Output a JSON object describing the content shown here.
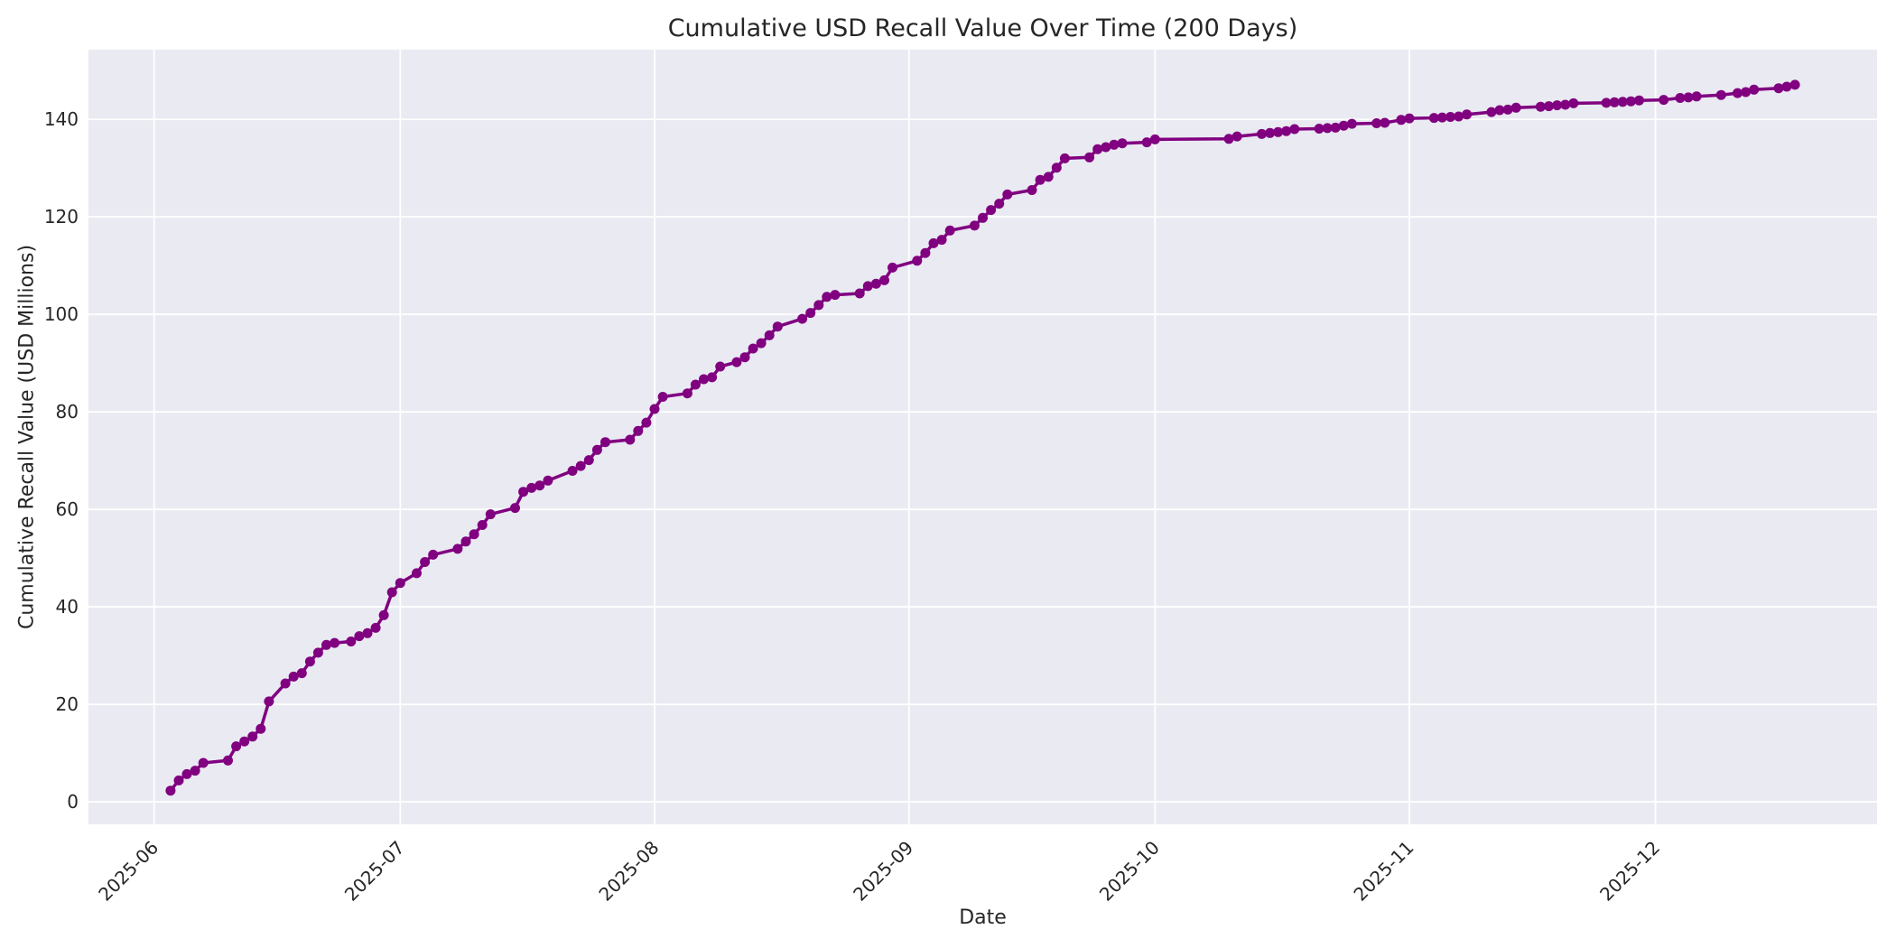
{
  "chart_data": {
    "type": "line",
    "title": "Cumulative USD Recall Value Over Time (200 Days)",
    "xlabel": "Date",
    "ylabel": "Cumulative Recall Value (USD Millions)",
    "legend": null,
    "grid": true,
    "style": {
      "plot_background": "#eaeaf2",
      "grid_color": "#ffffff",
      "line_color": "#800080",
      "marker": "circle",
      "text_color": "#262626"
    },
    "axes": {
      "xlim": [
        "2025-05-24",
        "2025-12-28"
      ],
      "ylim": [
        -4.6,
        154.3
      ],
      "x_tick_rotation_deg": 45
    },
    "x_ticks": [
      {
        "label": "2025-06",
        "date": "2025-06-01"
      },
      {
        "label": "2025-07",
        "date": "2025-07-01"
      },
      {
        "label": "2025-08",
        "date": "2025-08-01"
      },
      {
        "label": "2025-09",
        "date": "2025-09-01"
      },
      {
        "label": "2025-10",
        "date": "2025-10-01"
      },
      {
        "label": "2025-11",
        "date": "2025-11-01"
      },
      {
        "label": "2025-12",
        "date": "2025-12-01"
      }
    ],
    "y_ticks": [
      0,
      20,
      40,
      60,
      80,
      100,
      120,
      140
    ],
    "series": [
      {
        "name": "Cumulative USD Recall Value",
        "points": [
          [
            "2025-06-03",
            2.3
          ],
          [
            "2025-06-04",
            4.4
          ],
          [
            "2025-06-05",
            5.7
          ],
          [
            "2025-06-06",
            6.4
          ],
          [
            "2025-06-07",
            8.0
          ],
          [
            "2025-06-10",
            8.5
          ],
          [
            "2025-06-11",
            11.4
          ],
          [
            "2025-06-12",
            12.4
          ],
          [
            "2025-06-13",
            13.4
          ],
          [
            "2025-06-14",
            15.0
          ],
          [
            "2025-06-15",
            20.6
          ],
          [
            "2025-06-17",
            24.3
          ],
          [
            "2025-06-18",
            25.7
          ],
          [
            "2025-06-19",
            26.4
          ],
          [
            "2025-06-20",
            28.8
          ],
          [
            "2025-06-21",
            30.6
          ],
          [
            "2025-06-22",
            32.2
          ],
          [
            "2025-06-23",
            32.6
          ],
          [
            "2025-06-25",
            32.9
          ],
          [
            "2025-06-26",
            34.0
          ],
          [
            "2025-06-27",
            34.6
          ],
          [
            "2025-06-28",
            35.7
          ],
          [
            "2025-06-29",
            38.3
          ],
          [
            "2025-06-30",
            43.0
          ],
          [
            "2025-07-01",
            44.9
          ],
          [
            "2025-07-03",
            46.9
          ],
          [
            "2025-07-04",
            49.2
          ],
          [
            "2025-07-05",
            50.7
          ],
          [
            "2025-07-08",
            51.9
          ],
          [
            "2025-07-09",
            53.4
          ],
          [
            "2025-07-10",
            54.9
          ],
          [
            "2025-07-11",
            56.8
          ],
          [
            "2025-07-12",
            59.0
          ],
          [
            "2025-07-15",
            60.3
          ],
          [
            "2025-07-16",
            63.6
          ],
          [
            "2025-07-17",
            64.4
          ],
          [
            "2025-07-18",
            64.9
          ],
          [
            "2025-07-19",
            65.9
          ],
          [
            "2025-07-22",
            67.9
          ],
          [
            "2025-07-23",
            68.9
          ],
          [
            "2025-07-24",
            70.1
          ],
          [
            "2025-07-25",
            72.2
          ],
          [
            "2025-07-26",
            73.8
          ],
          [
            "2025-07-29",
            74.3
          ],
          [
            "2025-07-30",
            76.1
          ],
          [
            "2025-07-31",
            77.8
          ],
          [
            "2025-08-01",
            80.6
          ],
          [
            "2025-08-02",
            83.1
          ],
          [
            "2025-08-05",
            83.8
          ],
          [
            "2025-08-06",
            85.6
          ],
          [
            "2025-08-07",
            86.7
          ],
          [
            "2025-08-08",
            87.1
          ],
          [
            "2025-08-09",
            89.3
          ],
          [
            "2025-08-11",
            90.2
          ],
          [
            "2025-08-12",
            91.2
          ],
          [
            "2025-08-13",
            93.0
          ],
          [
            "2025-08-14",
            94.1
          ],
          [
            "2025-08-15",
            95.7
          ],
          [
            "2025-08-16",
            97.5
          ],
          [
            "2025-08-19",
            99.1
          ],
          [
            "2025-08-20",
            100.3
          ],
          [
            "2025-08-21",
            101.9
          ],
          [
            "2025-08-22",
            103.6
          ],
          [
            "2025-08-23",
            104.0
          ],
          [
            "2025-08-26",
            104.3
          ],
          [
            "2025-08-27",
            105.8
          ],
          [
            "2025-08-28",
            106.3
          ],
          [
            "2025-08-29",
            107.0
          ],
          [
            "2025-08-30",
            109.6
          ],
          [
            "2025-09-02",
            111.0
          ],
          [
            "2025-09-03",
            112.6
          ],
          [
            "2025-09-04",
            114.6
          ],
          [
            "2025-09-05",
            115.3
          ],
          [
            "2025-09-06",
            117.2
          ],
          [
            "2025-09-09",
            118.2
          ],
          [
            "2025-09-10",
            119.8
          ],
          [
            "2025-09-11",
            121.4
          ],
          [
            "2025-09-12",
            122.7
          ],
          [
            "2025-09-13",
            124.6
          ],
          [
            "2025-09-16",
            125.5
          ],
          [
            "2025-09-17",
            127.6
          ],
          [
            "2025-09-18",
            128.2
          ],
          [
            "2025-09-19",
            130.1
          ],
          [
            "2025-09-20",
            132.0
          ],
          [
            "2025-09-23",
            132.2
          ],
          [
            "2025-09-24",
            133.9
          ],
          [
            "2025-09-25",
            134.3
          ],
          [
            "2025-09-26",
            134.8
          ],
          [
            "2025-09-27",
            135.1
          ],
          [
            "2025-09-30",
            135.3
          ],
          [
            "2025-10-01",
            135.9
          ],
          [
            "2025-10-10",
            136.0
          ],
          [
            "2025-10-11",
            136.5
          ],
          [
            "2025-10-14",
            137.0
          ],
          [
            "2025-10-15",
            137.2
          ],
          [
            "2025-10-16",
            137.4
          ],
          [
            "2025-10-17",
            137.6
          ],
          [
            "2025-10-18",
            138.0
          ],
          [
            "2025-10-21",
            138.1
          ],
          [
            "2025-10-22",
            138.2
          ],
          [
            "2025-10-23",
            138.3
          ],
          [
            "2025-10-24",
            138.7
          ],
          [
            "2025-10-25",
            139.1
          ],
          [
            "2025-10-28",
            139.2
          ],
          [
            "2025-10-29",
            139.3
          ],
          [
            "2025-10-31",
            139.9
          ],
          [
            "2025-11-01",
            140.2
          ],
          [
            "2025-11-04",
            140.3
          ],
          [
            "2025-11-05",
            140.4
          ],
          [
            "2025-11-06",
            140.5
          ],
          [
            "2025-11-07",
            140.6
          ],
          [
            "2025-11-08",
            141.0
          ],
          [
            "2025-11-11",
            141.5
          ],
          [
            "2025-11-12",
            141.9
          ],
          [
            "2025-11-13",
            142.0
          ],
          [
            "2025-11-14",
            142.4
          ],
          [
            "2025-11-17",
            142.6
          ],
          [
            "2025-11-18",
            142.7
          ],
          [
            "2025-11-19",
            142.9
          ],
          [
            "2025-11-20",
            143.0
          ],
          [
            "2025-11-21",
            143.3
          ],
          [
            "2025-11-25",
            143.4
          ],
          [
            "2025-11-26",
            143.5
          ],
          [
            "2025-11-27",
            143.6
          ],
          [
            "2025-11-28",
            143.7
          ],
          [
            "2025-11-29",
            143.9
          ],
          [
            "2025-12-02",
            144.0
          ],
          [
            "2025-12-04",
            144.4
          ],
          [
            "2025-12-05",
            144.5
          ],
          [
            "2025-12-06",
            144.7
          ],
          [
            "2025-12-09",
            145.0
          ],
          [
            "2025-12-11",
            145.4
          ],
          [
            "2025-12-12",
            145.6
          ],
          [
            "2025-12-13",
            146.1
          ],
          [
            "2025-12-16",
            146.4
          ],
          [
            "2025-12-17",
            146.7
          ],
          [
            "2025-12-18",
            147.1
          ]
        ]
      }
    ]
  }
}
